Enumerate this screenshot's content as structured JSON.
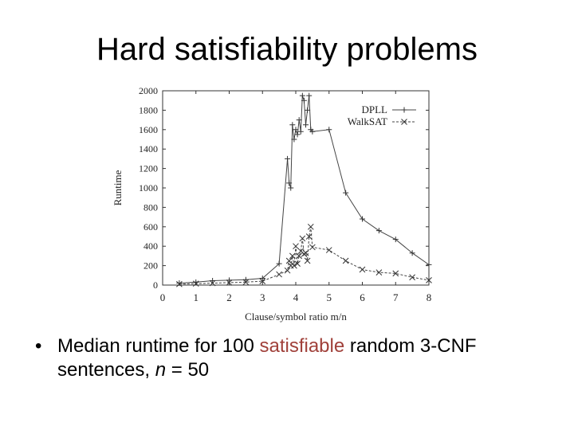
{
  "slide": {
    "title": "Hard satisfiability problems",
    "bullet": {
      "prefix": "Median runtime for 100 ",
      "highlight": "satisfiable",
      "middle": " random 3-CNF sentences, ",
      "var": "n",
      "suffix": " = 50"
    },
    "colors": {
      "highlight": "#a0403a",
      "text": "#000000"
    }
  },
  "chart_data": {
    "type": "line",
    "xlabel": "Clause/symbol ratio m/n",
    "ylabel": "Runtime",
    "xlim": [
      0,
      8
    ],
    "ylim": [
      0,
      2000
    ],
    "xticks": [
      0,
      1,
      2,
      3,
      4,
      5,
      6,
      7,
      8
    ],
    "yticks": [
      0,
      200,
      400,
      600,
      800,
      1000,
      1200,
      1400,
      1600,
      1800,
      2000
    ],
    "legend": "top-right",
    "grid": false,
    "series": [
      {
        "name": "DPLL",
        "marker": "plus",
        "dash": "solid",
        "x": [
          0.5,
          1.0,
          1.5,
          2.0,
          2.5,
          3.0,
          3.5,
          3.75,
          3.8,
          3.85,
          3.9,
          3.95,
          4.0,
          4.05,
          4.1,
          4.15,
          4.2,
          4.25,
          4.3,
          4.35,
          4.4,
          4.45,
          4.5,
          5.0,
          5.5,
          6.0,
          6.5,
          7.0,
          7.5,
          8.0
        ],
        "y": [
          20,
          30,
          45,
          50,
          55,
          70,
          220,
          1300,
          1050,
          1000,
          1650,
          1500,
          1600,
          1550,
          1700,
          1580,
          1950,
          1900,
          1650,
          1800,
          1950,
          1600,
          1580,
          1600,
          950,
          680,
          560,
          470,
          330,
          210
        ]
      },
      {
        "name": "WalkSAT",
        "marker": "cross",
        "dash": "dashed",
        "x": [
          0.5,
          1.0,
          1.5,
          2.0,
          2.5,
          3.0,
          3.5,
          3.75,
          3.8,
          3.85,
          3.9,
          3.95,
          4.0,
          4.05,
          4.1,
          4.15,
          4.2,
          4.25,
          4.3,
          4.35,
          4.4,
          4.45,
          4.5,
          5.0,
          5.5,
          6.0,
          6.5,
          7.0,
          7.5,
          8.0
        ],
        "y": [
          10,
          15,
          20,
          25,
          30,
          40,
          110,
          150,
          250,
          200,
          300,
          200,
          400,
          220,
          300,
          350,
          480,
          320,
          330,
          250,
          500,
          600,
          390,
          360,
          250,
          160,
          130,
          120,
          80,
          50
        ]
      }
    ]
  }
}
